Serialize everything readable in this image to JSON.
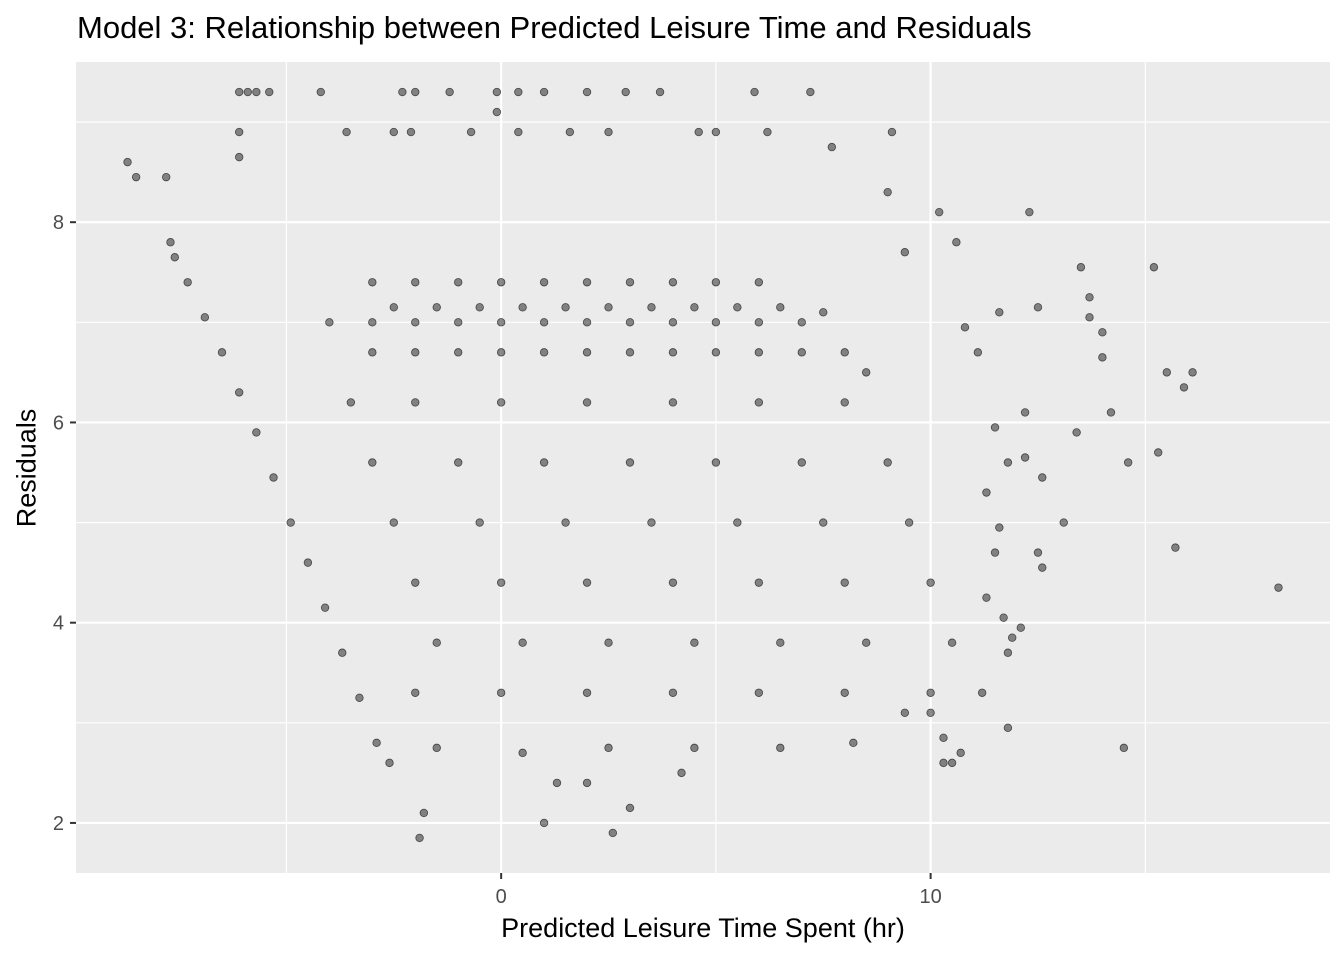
{
  "chart_data": {
    "type": "scatter",
    "title": "Model 3: Relationship between Predicted Leisure Time and Residuals",
    "xlabel": "Predicted Leisure Time Spent (hr)",
    "ylabel": "Residuals",
    "xlim": [
      -9.9,
      19.3
    ],
    "ylim": [
      1.5,
      9.6
    ],
    "x_ticks": [
      0,
      10
    ],
    "y_ticks": [
      2,
      4,
      6,
      8
    ],
    "grid": true,
    "point_color": "#000000",
    "point_opacity": 0.45,
    "panel_background": "#ebebeb",
    "grid_color": "#ffffff",
    "series": [
      {
        "points": [
          [
            -8.7,
            8.6
          ],
          [
            -8.5,
            8.45
          ],
          [
            -7.8,
            8.45
          ],
          [
            -6.1,
            9.3
          ],
          [
            -5.9,
            9.3
          ],
          [
            -5.7,
            9.3
          ],
          [
            -5.4,
            9.3
          ],
          [
            -4.2,
            9.3
          ],
          [
            -2.3,
            9.3
          ],
          [
            -2.0,
            9.3
          ],
          [
            -1.2,
            9.3
          ],
          [
            -0.1,
            9.3
          ],
          [
            0.4,
            9.3
          ],
          [
            1.0,
            9.3
          ],
          [
            2.0,
            9.3
          ],
          [
            2.9,
            9.3
          ],
          [
            3.7,
            9.3
          ],
          [
            5.9,
            9.3
          ],
          [
            7.2,
            9.3
          ],
          [
            -0.1,
            9.1
          ],
          [
            -6.1,
            8.9
          ],
          [
            -3.6,
            8.9
          ],
          [
            -2.5,
            8.9
          ],
          [
            -2.1,
            8.9
          ],
          [
            -0.7,
            8.9
          ],
          [
            0.4,
            8.9
          ],
          [
            1.6,
            8.9
          ],
          [
            2.5,
            8.9
          ],
          [
            4.6,
            8.9
          ],
          [
            5.0,
            8.9
          ],
          [
            6.2,
            8.9
          ],
          [
            9.1,
            8.9
          ],
          [
            -6.1,
            8.65
          ],
          [
            7.7,
            8.75
          ],
          [
            -7.7,
            7.8
          ],
          [
            -7.6,
            7.65
          ],
          [
            -7.3,
            7.4
          ],
          [
            -6.9,
            7.05
          ],
          [
            -6.5,
            6.7
          ],
          [
            -6.1,
            6.3
          ],
          [
            -5.7,
            5.9
          ],
          [
            -5.3,
            5.45
          ],
          [
            -4.9,
            5.0
          ],
          [
            -4.5,
            4.6
          ],
          [
            -4.1,
            4.15
          ],
          [
            -3.7,
            3.7
          ],
          [
            -3.3,
            3.25
          ],
          [
            -2.9,
            2.8
          ],
          [
            -2.6,
            2.6
          ],
          [
            -1.8,
            2.1
          ],
          [
            -1.9,
            1.85
          ],
          [
            1.0,
            2.0
          ],
          [
            2.6,
            1.9
          ],
          [
            3.0,
            2.15
          ],
          [
            1.3,
            2.4
          ],
          [
            2.0,
            2.4
          ],
          [
            4.2,
            2.5
          ],
          [
            -3.0,
            7.4
          ],
          [
            -2.0,
            7.4
          ],
          [
            -1.0,
            7.4
          ],
          [
            0.0,
            7.4
          ],
          [
            1.0,
            7.4
          ],
          [
            2.0,
            7.4
          ],
          [
            3.0,
            7.4
          ],
          [
            4.0,
            7.4
          ],
          [
            5.0,
            7.4
          ],
          [
            6.0,
            7.4
          ],
          [
            -2.5,
            7.15
          ],
          [
            -1.5,
            7.15
          ],
          [
            -0.5,
            7.15
          ],
          [
            0.5,
            7.15
          ],
          [
            1.5,
            7.15
          ],
          [
            2.5,
            7.15
          ],
          [
            3.5,
            7.15
          ],
          [
            4.5,
            7.15
          ],
          [
            5.5,
            7.15
          ],
          [
            6.5,
            7.15
          ],
          [
            7.5,
            7.1
          ],
          [
            -4.0,
            7.0
          ],
          [
            -3.0,
            7.0
          ],
          [
            -2.0,
            7.0
          ],
          [
            -1.0,
            7.0
          ],
          [
            0.0,
            7.0
          ],
          [
            1.0,
            7.0
          ],
          [
            2.0,
            7.0
          ],
          [
            3.0,
            7.0
          ],
          [
            4.0,
            7.0
          ],
          [
            5.0,
            7.0
          ],
          [
            6.0,
            7.0
          ],
          [
            7.0,
            7.0
          ],
          [
            -3.0,
            6.7
          ],
          [
            -2.0,
            6.7
          ],
          [
            -1.0,
            6.7
          ],
          [
            0.0,
            6.7
          ],
          [
            1.0,
            6.7
          ],
          [
            2.0,
            6.7
          ],
          [
            3.0,
            6.7
          ],
          [
            4.0,
            6.7
          ],
          [
            5.0,
            6.7
          ],
          [
            6.0,
            6.7
          ],
          [
            7.0,
            6.7
          ],
          [
            8.0,
            6.7
          ],
          [
            8.5,
            6.5
          ],
          [
            -3.5,
            6.2
          ],
          [
            -2.0,
            6.2
          ],
          [
            0.0,
            6.2
          ],
          [
            2.0,
            6.2
          ],
          [
            4.0,
            6.2
          ],
          [
            6.0,
            6.2
          ],
          [
            8.0,
            6.2
          ],
          [
            -3.0,
            5.6
          ],
          [
            -1.0,
            5.6
          ],
          [
            1.0,
            5.6
          ],
          [
            3.0,
            5.6
          ],
          [
            5.0,
            5.6
          ],
          [
            7.0,
            5.6
          ],
          [
            9.0,
            5.6
          ],
          [
            -2.5,
            5.0
          ],
          [
            -0.5,
            5.0
          ],
          [
            1.5,
            5.0
          ],
          [
            3.5,
            5.0
          ],
          [
            5.5,
            5.0
          ],
          [
            7.5,
            5.0
          ],
          [
            9.5,
            5.0
          ],
          [
            -2.0,
            4.4
          ],
          [
            0.0,
            4.4
          ],
          [
            2.0,
            4.4
          ],
          [
            4.0,
            4.4
          ],
          [
            6.0,
            4.4
          ],
          [
            8.0,
            4.4
          ],
          [
            10.0,
            4.4
          ],
          [
            -1.5,
            3.8
          ],
          [
            0.5,
            3.8
          ],
          [
            2.5,
            3.8
          ],
          [
            4.5,
            3.8
          ],
          [
            6.5,
            3.8
          ],
          [
            8.5,
            3.8
          ],
          [
            10.5,
            3.8
          ],
          [
            -2.0,
            3.3
          ],
          [
            0.0,
            3.3
          ],
          [
            2.0,
            3.3
          ],
          [
            4.0,
            3.3
          ],
          [
            6.0,
            3.3
          ],
          [
            8.0,
            3.3
          ],
          [
            10.0,
            3.3
          ],
          [
            -1.5,
            2.75
          ],
          [
            0.5,
            2.7
          ],
          [
            2.5,
            2.75
          ],
          [
            4.5,
            2.75
          ],
          [
            6.5,
            2.75
          ],
          [
            8.2,
            2.8
          ],
          [
            10.3,
            2.6
          ],
          [
            9.0,
            8.3
          ],
          [
            10.2,
            8.1
          ],
          [
            12.3,
            8.1
          ],
          [
            10.6,
            7.8
          ],
          [
            9.4,
            7.7
          ],
          [
            13.5,
            7.55
          ],
          [
            15.2,
            7.55
          ],
          [
            13.7,
            7.25
          ],
          [
            13.7,
            7.05
          ],
          [
            12.5,
            7.15
          ],
          [
            11.6,
            7.1
          ],
          [
            10.8,
            6.95
          ],
          [
            14.0,
            6.9
          ],
          [
            11.1,
            6.7
          ],
          [
            14.0,
            6.65
          ],
          [
            16.1,
            6.5
          ],
          [
            15.5,
            6.5
          ],
          [
            15.9,
            6.35
          ],
          [
            14.2,
            6.1
          ],
          [
            12.2,
            6.1
          ],
          [
            11.5,
            5.95
          ],
          [
            13.4,
            5.9
          ],
          [
            11.8,
            5.6
          ],
          [
            12.2,
            5.65
          ],
          [
            15.3,
            5.7
          ],
          [
            14.6,
            5.6
          ],
          [
            12.6,
            5.45
          ],
          [
            11.3,
            5.3
          ],
          [
            11.6,
            4.95
          ],
          [
            13.1,
            5.0
          ],
          [
            11.5,
            4.7
          ],
          [
            12.5,
            4.7
          ],
          [
            15.7,
            4.75
          ],
          [
            12.6,
            4.55
          ],
          [
            11.3,
            4.25
          ],
          [
            18.1,
            4.35
          ],
          [
            11.7,
            4.05
          ],
          [
            12.1,
            3.95
          ],
          [
            11.9,
            3.85
          ],
          [
            11.8,
            3.7
          ],
          [
            11.2,
            3.3
          ],
          [
            11.8,
            2.95
          ],
          [
            14.5,
            2.75
          ],
          [
            10.7,
            2.7
          ],
          [
            10.5,
            2.6
          ],
          [
            10.3,
            2.85
          ],
          [
            9.4,
            3.1
          ],
          [
            10.0,
            3.1
          ]
        ]
      }
    ]
  }
}
